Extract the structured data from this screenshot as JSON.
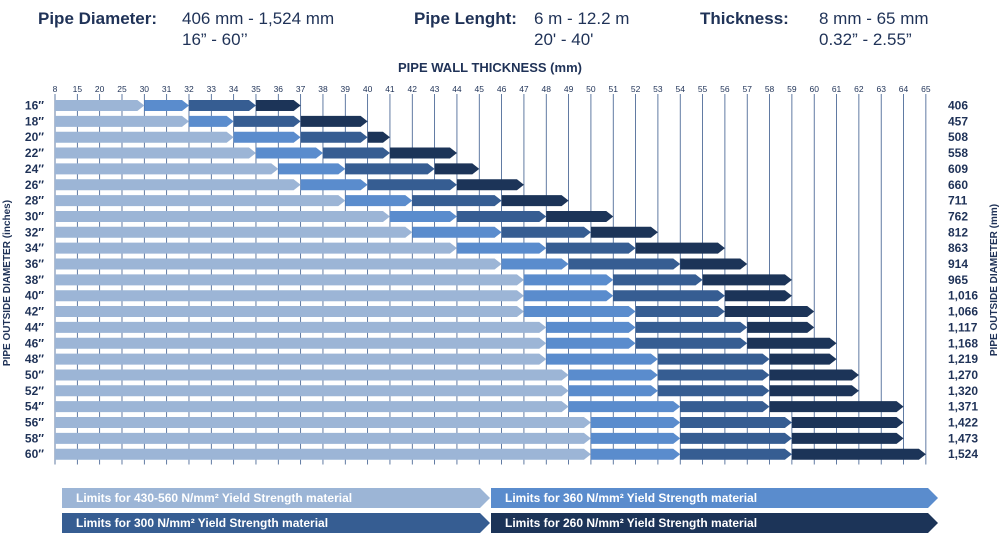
{
  "specs": {
    "diameter": {
      "label": "Pipe Diameter:",
      "line1": "406 mm - 1,524 mm",
      "line2": "16” - 60’’"
    },
    "length": {
      "label": "Pipe Lenght:",
      "line1": "6 m - 12.2 m",
      "line2": "20' - 40'"
    },
    "thickness": {
      "label": "Thickness:",
      "line1": "8 mm - 65 mm",
      "line2": "0.32” - 2.55”"
    }
  },
  "chart_data": {
    "type": "bar",
    "orientation": "horizontal-stacked-ranges",
    "title": "PIPE WALL THICKNESS (mm)",
    "ylabel_left": "PIPE OUTSIDE DIAMETER  (inches)",
    "ylabel_right": "PIPE OUTSIDE DIAMETER  (mm)",
    "x_ticks": [
      8,
      15,
      20,
      25,
      30,
      31,
      32,
      33,
      34,
      35,
      36,
      37,
      38,
      39,
      40,
      41,
      42,
      43,
      44,
      45,
      46,
      47,
      48,
      49,
      50,
      51,
      52,
      53,
      54,
      55,
      56,
      57,
      58,
      59,
      60,
      61,
      62,
      63,
      64,
      65
    ],
    "grid": true,
    "series": [
      {
        "name": "Limits for 430-560 N/mm² Yield Strength material",
        "color": "#9cb5d6"
      },
      {
        "name": "Limits for 360 N/mm² Yield Strength material",
        "color": "#5a8ccd"
      },
      {
        "name": "Limits for 300 N/mm² Yield Strength material",
        "color": "#365d92"
      },
      {
        "name": "Limits for 260 N/mm² Yield Strength material",
        "color": "#1c3458"
      }
    ],
    "rows": [
      {
        "inch": "16″",
        "mm": "406",
        "limits": [
          30,
          32,
          35,
          37
        ]
      },
      {
        "inch": "18″",
        "mm": "457",
        "limits": [
          32,
          34,
          37,
          40
        ]
      },
      {
        "inch": "20″",
        "mm": "508",
        "limits": [
          34,
          37,
          40,
          41
        ]
      },
      {
        "inch": "22″",
        "mm": "558",
        "limits": [
          35,
          38,
          41,
          44
        ]
      },
      {
        "inch": "24″",
        "mm": "609",
        "limits": [
          36,
          39,
          43,
          45
        ]
      },
      {
        "inch": "26″",
        "mm": "660",
        "limits": [
          37,
          40,
          44,
          47
        ]
      },
      {
        "inch": "28″",
        "mm": "711",
        "limits": [
          39,
          42,
          46,
          49
        ]
      },
      {
        "inch": "30″",
        "mm": "762",
        "limits": [
          41,
          44,
          48,
          51
        ]
      },
      {
        "inch": "32″",
        "mm": "812",
        "limits": [
          42,
          46,
          50,
          53
        ]
      },
      {
        "inch": "34″",
        "mm": "863",
        "limits": [
          44,
          48,
          52,
          56
        ]
      },
      {
        "inch": "36″",
        "mm": "914",
        "limits": [
          46,
          49,
          54,
          57
        ]
      },
      {
        "inch": "38″",
        "mm": "965",
        "limits": [
          47,
          51,
          55,
          59
        ]
      },
      {
        "inch": "40″",
        "mm": "1,016",
        "limits": [
          47,
          51,
          56,
          59
        ]
      },
      {
        "inch": "42″",
        "mm": "1,066",
        "limits": [
          47,
          52,
          56,
          60
        ]
      },
      {
        "inch": "44″",
        "mm": "1,117",
        "limits": [
          48,
          52,
          57,
          60
        ]
      },
      {
        "inch": "46″",
        "mm": "1,168",
        "limits": [
          48,
          52,
          57,
          61
        ]
      },
      {
        "inch": "48″",
        "mm": "1,219",
        "limits": [
          48,
          53,
          58,
          61
        ]
      },
      {
        "inch": "50″",
        "mm": "1,270",
        "limits": [
          49,
          53,
          58,
          62
        ]
      },
      {
        "inch": "52″",
        "mm": "1,320",
        "limits": [
          49,
          53,
          58,
          62
        ]
      },
      {
        "inch": "54″",
        "mm": "1,371",
        "limits": [
          49,
          54,
          58,
          64
        ]
      },
      {
        "inch": "56″",
        "mm": "1,422",
        "limits": [
          50,
          54,
          59,
          64
        ]
      },
      {
        "inch": "58″",
        "mm": "1,473",
        "limits": [
          50,
          54,
          59,
          64
        ]
      },
      {
        "inch": "60″",
        "mm": "1,524",
        "limits": [
          50,
          54,
          59,
          65
        ]
      }
    ]
  }
}
